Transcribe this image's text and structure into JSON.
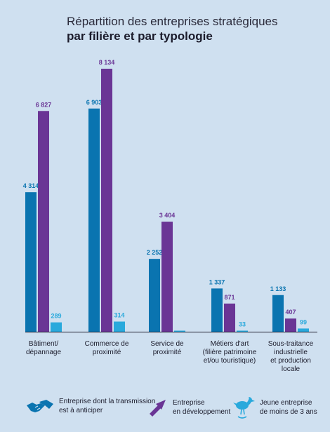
{
  "title": {
    "line1": "Répartition des entreprises stratégiques",
    "line2": "par filière et par typologie"
  },
  "colors": {
    "transmission": "#0a74b0",
    "developpement": "#6a3595",
    "jeune": "#29a9dc",
    "label_transmission": "#0a74b0",
    "label_developpement": "#6a3595",
    "label_jeune": "#29a9dc"
  },
  "chart_data": {
    "type": "bar",
    "title": "Répartition des entreprises stratégiques par filière et par typologie",
    "categories": [
      [
        "Bâtiment/",
        "dépannage"
      ],
      [
        "Commerce de",
        "proximité"
      ],
      [
        "Service de",
        "proximité"
      ],
      [
        "Métiers d'art",
        "(filière patrimoine",
        "et/ou touristique)"
      ],
      [
        "Sous-traitance",
        "industrielle",
        "et production",
        "locale"
      ]
    ],
    "series": [
      {
        "name": "Entreprise dont la transmission est à anticiper",
        "values": [
          4314,
          6903,
          2252,
          1337,
          1133
        ],
        "labels": [
          "4 314",
          "6 903",
          "2 252",
          "1 337",
          "1 133"
        ]
      },
      {
        "name": "Entreprise en développement",
        "values": [
          6827,
          8134,
          3404,
          871,
          407
        ],
        "labels": [
          "6 827",
          "8 134",
          "3 404",
          "871",
          "407"
        ]
      },
      {
        "name": "Jeune entreprise de moins de 3 ans",
        "values": [
          289,
          314,
          null,
          33,
          99
        ],
        "labels": [
          "289",
          "314",
          "",
          "33",
          "99"
        ]
      }
    ],
    "ylim": [
      0,
      8134
    ],
    "grid": false,
    "legend": "bottom"
  },
  "legend": {
    "transmission": [
      "Entreprise dont la transmission",
      "est à anticiper"
    ],
    "developpement": [
      "Entreprise",
      "en développement"
    ],
    "jeune": [
      "Jeune entreprise",
      "de moins de 3 ans"
    ],
    "icons": {
      "transmission": "handshake-icon",
      "developpement": "rising-arrow-icon",
      "jeune": "stork-icon"
    }
  }
}
